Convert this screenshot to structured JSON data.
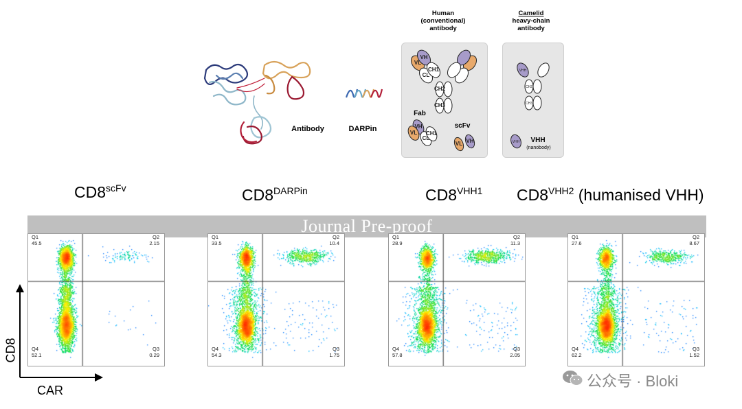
{
  "top_figure": {
    "structure_labels": {
      "antibody": "Antibody",
      "darpin": "DARPin"
    },
    "human_header": [
      "Human",
      "(conventional)",
      "antibody"
    ],
    "camelid_header": [
      "Camelid",
      "heavy-chain",
      "antibody"
    ],
    "human_box": {
      "fab_label": "Fab",
      "scfv_label": "scFv"
    },
    "camelid_box": {
      "vhh_label": "VHH",
      "nanobody_label": "(nanobody)"
    }
  },
  "banner": {
    "text": "Journal Pre-proof"
  },
  "plots": [
    {
      "title": "CD8",
      "sup": "scFv",
      "suffix": "",
      "q1": "45.5",
      "q2": "2.15",
      "q3": "0.29",
      "q4": "52.1"
    },
    {
      "title": "CD8",
      "sup": "DARPin",
      "suffix": "",
      "q1": "33.5",
      "q2": "10.4",
      "q3": "1.75",
      "q4": "54.3"
    },
    {
      "title": "CD8",
      "sup": "VHH1",
      "suffix": "",
      "q1": "28.9",
      "q2": "11.3",
      "q3": "2.05",
      "q4": "57.8"
    },
    {
      "title": "CD8",
      "sup": "VHH2",
      "suffix": " (humanised VHH)",
      "q1": "27.6",
      "q2": "8.67",
      "q3": "1.52",
      "q4": "62.2"
    }
  ],
  "quadrant_names": {
    "q1": "Q1",
    "q2": "Q2",
    "q3": "Q3",
    "q4": "Q4"
  },
  "axes": {
    "y_label": "CD8",
    "x_label": "CAR"
  },
  "watermark": {
    "text": "公众号 · Bloki"
  },
  "colors": {
    "vl": "#e8a96b",
    "vh": "#a79bc9",
    "dens_low": "#1a1aff",
    "dens_high": "#ff2a00"
  }
}
